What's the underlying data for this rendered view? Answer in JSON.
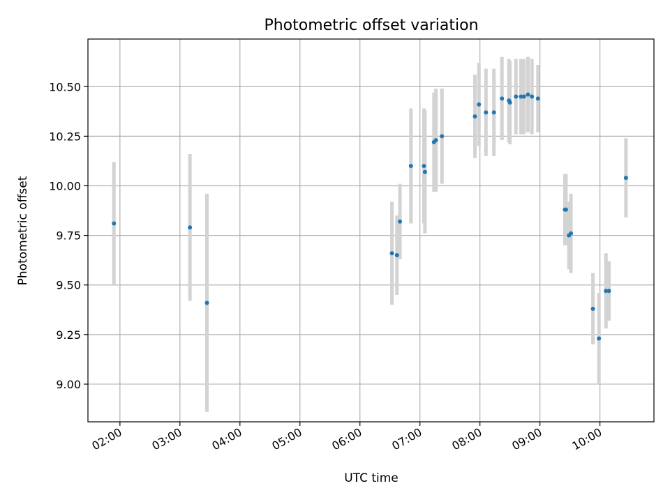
{
  "chart_data": {
    "type": "scatter",
    "title": "Photometric offset variation",
    "xlabel": "UTC time",
    "ylabel": "Photometric offset",
    "x_ticks": [
      "02:00",
      "03:00",
      "04:00",
      "05:00",
      "06:00",
      "07:00",
      "08:00",
      "09:00",
      "10:00"
    ],
    "y_ticks": [
      "9.00",
      "9.25",
      "9.50",
      "9.75",
      "10.00",
      "10.25",
      "10.50"
    ],
    "xlim": [
      "01:28",
      "10:54"
    ],
    "ylim": [
      8.81,
      10.74
    ],
    "grid": true,
    "point_color": "#1f77b4",
    "errorbar_color": "#d3d3d3",
    "points": [
      {
        "x": "01:54",
        "y": 9.81,
        "err": 0.31
      },
      {
        "x": "03:10",
        "y": 9.79,
        "err": 0.37
      },
      {
        "x": "03:27",
        "y": 9.41,
        "err": 0.55
      },
      {
        "x": "06:32",
        "y": 9.66,
        "err": 0.26
      },
      {
        "x": "06:37",
        "y": 9.65,
        "err": 0.2
      },
      {
        "x": "06:40",
        "y": 9.82,
        "err": 0.19
      },
      {
        "x": "06:51",
        "y": 10.1,
        "err": 0.29
      },
      {
        "x": "07:04",
        "y": 10.1,
        "err": 0.29
      },
      {
        "x": "07:05",
        "y": 10.07,
        "err": 0.31
      },
      {
        "x": "07:14",
        "y": 10.22,
        "err": 0.25
      },
      {
        "x": "07:16",
        "y": 10.23,
        "err": 0.26
      },
      {
        "x": "07:22",
        "y": 10.25,
        "err": 0.24
      },
      {
        "x": "07:55",
        "y": 10.35,
        "err": 0.21
      },
      {
        "x": "07:59",
        "y": 10.41,
        "err": 0.21
      },
      {
        "x": "08:06",
        "y": 10.37,
        "err": 0.22
      },
      {
        "x": "08:14",
        "y": 10.37,
        "err": 0.22
      },
      {
        "x": "08:22",
        "y": 10.44,
        "err": 0.21
      },
      {
        "x": "08:29",
        "y": 10.43,
        "err": 0.21
      },
      {
        "x": "08:30",
        "y": 10.42,
        "err": 0.21
      },
      {
        "x": "08:36",
        "y": 10.45,
        "err": 0.19
      },
      {
        "x": "08:41",
        "y": 10.45,
        "err": 0.19
      },
      {
        "x": "08:44",
        "y": 10.45,
        "err": 0.19
      },
      {
        "x": "08:48",
        "y": 10.46,
        "err": 0.19
      },
      {
        "x": "08:52",
        "y": 10.45,
        "err": 0.19
      },
      {
        "x": "08:58",
        "y": 10.44,
        "err": 0.17
      },
      {
        "x": "09:25",
        "y": 9.88,
        "err": 0.18
      },
      {
        "x": "09:26",
        "y": 9.88,
        "err": 0.18
      },
      {
        "x": "09:29",
        "y": 9.75,
        "err": 0.17
      },
      {
        "x": "09:31",
        "y": 9.76,
        "err": 0.2
      },
      {
        "x": "09:53",
        "y": 9.38,
        "err": 0.18
      },
      {
        "x": "09:59",
        "y": 9.23,
        "err": 0.23
      },
      {
        "x": "10:06",
        "y": 9.47,
        "err": 0.19
      },
      {
        "x": "10:09",
        "y": 9.47,
        "err": 0.15
      },
      {
        "x": "10:26",
        "y": 10.04,
        "err": 0.2
      }
    ]
  }
}
